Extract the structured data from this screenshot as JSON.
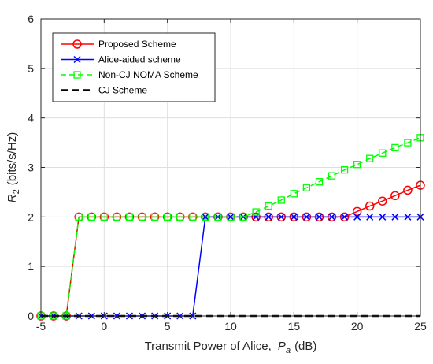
{
  "chart_data": {
    "type": "line",
    "xlabel": "Transmit Power of Alice,",
    "xlabel_symbol": "P",
    "xlabel_subscript": "a",
    "xlabel_unit": "(dB)",
    "ylabel_symbol": "R",
    "ylabel_subscript": "2",
    "ylabel_unit": "(bits/s/Hz)",
    "xlim": [
      -5,
      25
    ],
    "ylim": [
      0,
      6
    ],
    "xticks": [
      -5,
      0,
      5,
      10,
      15,
      20,
      25
    ],
    "yticks": [
      0,
      1,
      2,
      3,
      4,
      5,
      6
    ],
    "grid": true,
    "legend_position": "top-left",
    "x": [
      -5,
      -4,
      -3,
      -2,
      -1,
      0,
      1,
      2,
      3,
      4,
      5,
      6,
      7,
      8,
      9,
      10,
      11,
      12,
      13,
      14,
      15,
      16,
      17,
      18,
      19,
      20,
      21,
      22,
      23,
      24,
      25
    ],
    "series": [
      {
        "name": "Proposed Scheme",
        "color": "#ff0000",
        "marker": "circle",
        "dash": "solid",
        "values": [
          0,
          0,
          0,
          2,
          2,
          2,
          2,
          2,
          2,
          2,
          2,
          2,
          2,
          2,
          2,
          2,
          2,
          2,
          2,
          2,
          2,
          2,
          2,
          2,
          2,
          2.11,
          2.22,
          2.32,
          2.43,
          2.54,
          2.64
        ]
      },
      {
        "name": "Alice-aided scheme",
        "color": "#0000ff",
        "marker": "x",
        "dash": "solid",
        "values": [
          0,
          0,
          0,
          0,
          0,
          0,
          0,
          0,
          0,
          0,
          0,
          0,
          0,
          2,
          2,
          2,
          2,
          2,
          2,
          2,
          2,
          2,
          2,
          2,
          2,
          2,
          2,
          2,
          2,
          2,
          2
        ]
      },
      {
        "name": "Non-CJ NOMA Scheme",
        "color": "#00ff00",
        "marker": "square",
        "dash": "dashed",
        "values": [
          0,
          0,
          0,
          2,
          2,
          2,
          2,
          2,
          2,
          2,
          2,
          2,
          2,
          2,
          2,
          2,
          2,
          2.1,
          2.22,
          2.34,
          2.47,
          2.59,
          2.71,
          2.83,
          2.95,
          3.06,
          3.18,
          3.29,
          3.4,
          3.5,
          3.6
        ]
      },
      {
        "name": "CJ Scheme",
        "color": "#000000",
        "marker": "none",
        "dash": "dashed-thick",
        "values": [
          0,
          0,
          0,
          0,
          0,
          0,
          0,
          0,
          0,
          0,
          0,
          0,
          0,
          0,
          0,
          0,
          0,
          0,
          0,
          0,
          0,
          0,
          0,
          0,
          0,
          0,
          0,
          0,
          0,
          0,
          0
        ]
      }
    ]
  }
}
